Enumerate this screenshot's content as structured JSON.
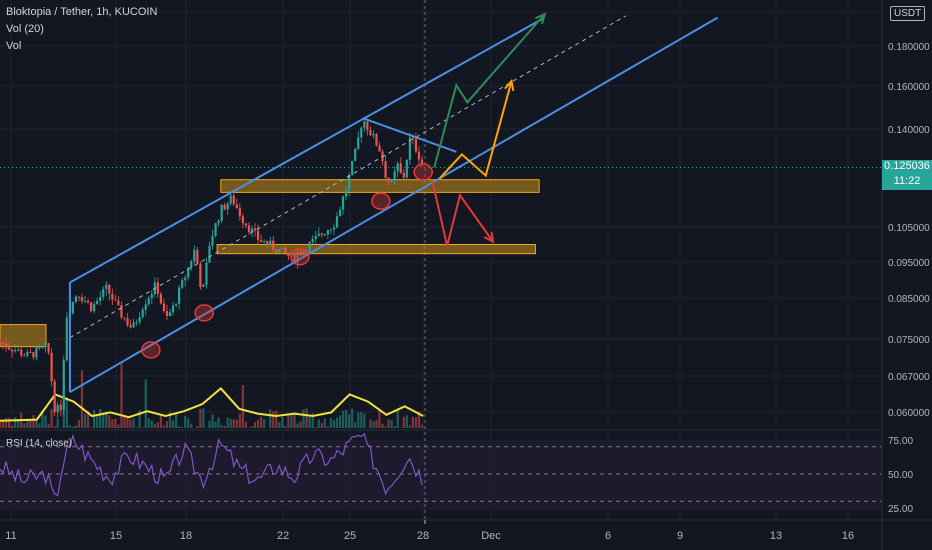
{
  "header": {
    "symbol_line": "Bloktopia / Tether, 1h, KUCOIN",
    "vol_line": "Vol (20)",
    "vol_sub": "Vol",
    "currency_badge": "USDT"
  },
  "rsi": {
    "label": "RSI (14, close)"
  },
  "last_price": {
    "value": "0.125036",
    "countdown": "11:22"
  },
  "colors": {
    "background": "#131722",
    "up_candle": "#26a69a",
    "down_candle": "#ef5350",
    "channel": "#4a90e2",
    "zone_fill": "#c88f1a",
    "zone_border": "#f5a623",
    "vol_ma": "#f2e33a",
    "rsi_line": "#7e57c2",
    "arrow_green": "#2e8b57",
    "arrow_orange": "#ffa500",
    "arrow_red": "#e53935",
    "price_tag": "#26a69a"
  },
  "chart_data": {
    "type": "candlestick",
    "title": "Bloktopia / Tether, 1h, KUCOIN",
    "x_tick_labels": [
      "11",
      "15",
      "18",
      "22",
      "25",
      "28",
      "Dec",
      "6",
      "9",
      "13",
      "16"
    ],
    "y_tick_labels": [
      "0.180000",
      "0.160000",
      "0.140000",
      "0.105000",
      "0.095000",
      "0.085000",
      "0.075000",
      "0.067000",
      "0.060000"
    ],
    "y_scale": "log",
    "rsi_tick_labels": [
      "75.00",
      "50.00",
      "25.00"
    ],
    "rsi_levels": [
      70,
      50,
      30
    ],
    "last_price": 0.125036,
    "price_path": [
      [
        0.0,
        0.074
      ],
      [
        1.5,
        0.071
      ],
      [
        2.6,
        0.073
      ],
      [
        3.0,
        0.06
      ],
      [
        3.3,
        0.061
      ],
      [
        3.6,
        0.08
      ],
      [
        4.2,
        0.086
      ],
      [
        5.0,
        0.082
      ],
      [
        5.8,
        0.087
      ],
      [
        6.5,
        0.081
      ],
      [
        7.2,
        0.077
      ],
      [
        7.8,
        0.083
      ],
      [
        8.5,
        0.088
      ],
      [
        9.0,
        0.079
      ],
      [
        9.4,
        0.082
      ],
      [
        10.2,
        0.092
      ],
      [
        10.6,
        0.098
      ],
      [
        11.0,
        0.085
      ],
      [
        11.4,
        0.1
      ],
      [
        12.0,
        0.11
      ],
      [
        12.6,
        0.114
      ],
      [
        13.2,
        0.107
      ],
      [
        14.0,
        0.101
      ],
      [
        15.0,
        0.098
      ],
      [
        15.9,
        0.095
      ],
      [
        16.6,
        0.098
      ],
      [
        17.4,
        0.102
      ],
      [
        18.2,
        0.106
      ],
      [
        18.8,
        0.117
      ],
      [
        19.3,
        0.13
      ],
      [
        19.7,
        0.145
      ],
      [
        20.2,
        0.138
      ],
      [
        20.7,
        0.131
      ],
      [
        21.0,
        0.121
      ],
      [
        21.3,
        0.119
      ],
      [
        21.6,
        0.126
      ],
      [
        21.9,
        0.12
      ],
      [
        22.3,
        0.137
      ],
      [
        22.7,
        0.131
      ],
      [
        23.0,
        0.125
      ]
    ],
    "rsi_path": [
      [
        0.0,
        56
      ],
      [
        1.2,
        45
      ],
      [
        2.5,
        50
      ],
      [
        3.0,
        29
      ],
      [
        3.4,
        58
      ],
      [
        4.0,
        75
      ],
      [
        5.0,
        60
      ],
      [
        6.0,
        47
      ],
      [
        7.0,
        64
      ],
      [
        8.0,
        55
      ],
      [
        9.0,
        45
      ],
      [
        10.0,
        68
      ],
      [
        11.0,
        45
      ],
      [
        12.0,
        72
      ],
      [
        13.0,
        54
      ],
      [
        14.0,
        45
      ],
      [
        15.0,
        56
      ],
      [
        16.0,
        48
      ],
      [
        17.0,
        64
      ],
      [
        18.0,
        60
      ],
      [
        19.0,
        72
      ],
      [
        19.6,
        78
      ],
      [
        20.3,
        60
      ],
      [
        21.0,
        40
      ],
      [
        21.5,
        50
      ],
      [
        22.2,
        64
      ],
      [
        23.0,
        46
      ]
    ],
    "horizontal_zones": [
      {
        "x_from": 12.0,
        "x_to": 29.3,
        "y_low": 0.116,
        "y_high": 0.1205
      },
      {
        "x_from": 11.8,
        "x_to": 29.1,
        "y_low": 0.0965,
        "y_high": 0.0992
      },
      {
        "x_from": 0.0,
        "x_to": 2.5,
        "y_low": 0.073,
        "y_high": 0.078
      }
    ],
    "channel": {
      "upper": [
        [
          3.8,
          0.0885
        ],
        [
          29.6,
          0.196
        ]
      ],
      "lower": [
        [
          3.8,
          0.0637
        ],
        [
          39.0,
          0.196
        ]
      ],
      "mid": [
        [
          3.8,
          0.075
        ],
        [
          34.0,
          0.197
        ]
      ]
    },
    "triangle_line": [
      [
        19.7,
        0.145
      ],
      [
        24.8,
        0.131
      ]
    ],
    "circle_markers": [
      [
        8.2,
        0.0723
      ],
      [
        11.1,
        0.0808
      ],
      [
        16.3,
        0.0956
      ],
      [
        20.7,
        0.113
      ],
      [
        23.0,
        0.1233
      ]
    ],
    "projections": {
      "green": [
        [
          23.6,
          0.125
        ],
        [
          24.8,
          0.16
        ],
        [
          25.4,
          0.152
        ],
        [
          29.6,
          0.198
        ]
      ],
      "orange": [
        [
          23.9,
          0.121
        ],
        [
          25.1,
          0.13
        ],
        [
          26.4,
          0.122
        ],
        [
          27.8,
          0.162
        ]
      ],
      "red": [
        [
          23.5,
          0.12
        ],
        [
          24.3,
          0.0988
        ],
        [
          25.0,
          0.115
        ],
        [
          26.8,
          0.1
        ]
      ]
    },
    "volume_ma_path": [
      [
        0.0,
        0.06
      ],
      [
        2.0,
        0.07
      ],
      [
        3.0,
        0.28
      ],
      [
        4.0,
        0.22
      ],
      [
        5.0,
        0.1
      ],
      [
        6.0,
        0.13
      ],
      [
        7.0,
        0.09
      ],
      [
        8.0,
        0.14
      ],
      [
        9.0,
        0.1
      ],
      [
        10.0,
        0.14
      ],
      [
        11.0,
        0.2
      ],
      [
        12.0,
        0.33
      ],
      [
        13.0,
        0.16
      ],
      [
        14.0,
        0.12
      ],
      [
        15.0,
        0.1
      ],
      [
        16.0,
        0.12
      ],
      [
        17.0,
        0.1
      ],
      [
        18.0,
        0.13
      ],
      [
        19.0,
        0.28
      ],
      [
        20.0,
        0.22
      ],
      [
        21.0,
        0.11
      ],
      [
        22.0,
        0.18
      ],
      [
        23.0,
        0.1
      ]
    ]
  }
}
